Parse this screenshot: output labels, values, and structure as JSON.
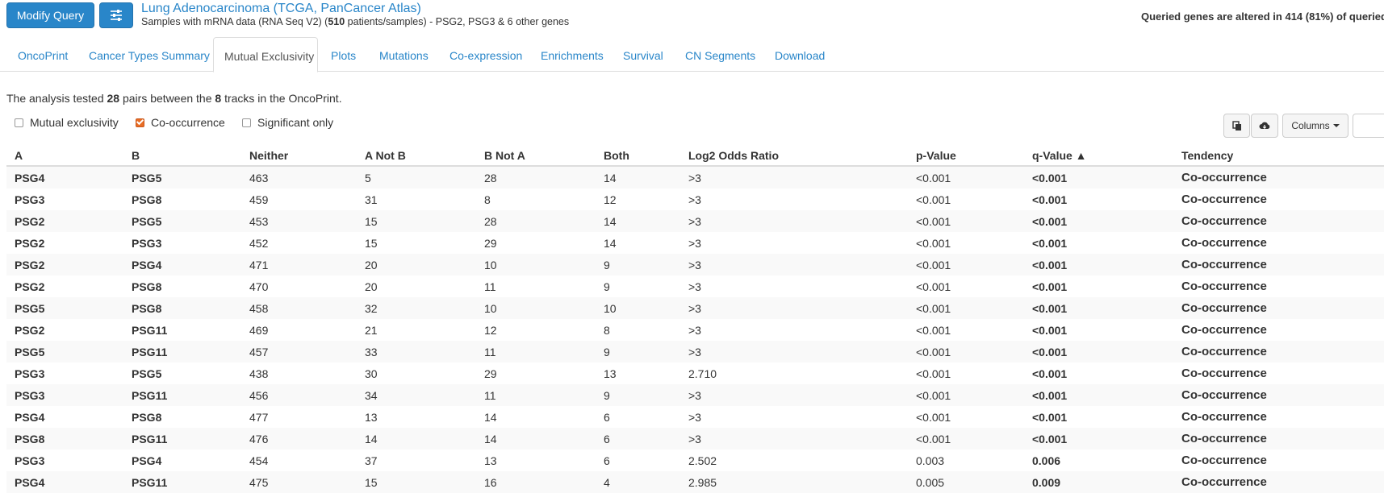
{
  "header": {
    "modify_label": "Modify Query",
    "study_title": "Lung Adenocarcinoma (TCGA, PanCancer Atlas)",
    "study_sub_prefix": "Samples with mRNA data (RNA Seq V2) (",
    "study_sub_count": "510",
    "study_sub_suffix": " patients/samples)  - PSG2, PSG3 & 6 other genes",
    "altered_text": "Queried genes are altered in 414 (81%) of queried"
  },
  "tabs": [
    "OncoPrint",
    "Cancer Types Summary",
    "Mutual Exclusivity",
    "Plots",
    "Mutations",
    "Co-expression",
    "Enrichments",
    "Survival",
    "CN Segments",
    "Download"
  ],
  "summary": {
    "p1": "The analysis tested ",
    "pairs": "28",
    "p2": " pairs between the ",
    "tracks": "8",
    "p3": " tracks in the OncoPrint."
  },
  "filters": {
    "mutual_exclusivity": "Mutual exclusivity",
    "co_occurrence": "Co-occurrence",
    "significant_only": "Significant only"
  },
  "toolbar": {
    "columns_label": "Columns"
  },
  "table": {
    "headers": [
      "A",
      "B",
      "Neither",
      "A Not B",
      "B Not A",
      "Both",
      "Log2 Odds Ratio",
      "p-Value",
      "q-Value ▲",
      "Tendency"
    ],
    "rows": [
      [
        "PSG4",
        "PSG5",
        "463",
        "5",
        "28",
        "14",
        ">3",
        "<0.001",
        "<0.001",
        "Co-occurrence"
      ],
      [
        "PSG3",
        "PSG8",
        "459",
        "31",
        "8",
        "12",
        ">3",
        "<0.001",
        "<0.001",
        "Co-occurrence"
      ],
      [
        "PSG2",
        "PSG5",
        "453",
        "15",
        "28",
        "14",
        ">3",
        "<0.001",
        "<0.001",
        "Co-occurrence"
      ],
      [
        "PSG2",
        "PSG3",
        "452",
        "15",
        "29",
        "14",
        ">3",
        "<0.001",
        "<0.001",
        "Co-occurrence"
      ],
      [
        "PSG2",
        "PSG4",
        "471",
        "20",
        "10",
        "9",
        ">3",
        "<0.001",
        "<0.001",
        "Co-occurrence"
      ],
      [
        "PSG2",
        "PSG8",
        "470",
        "20",
        "11",
        "9",
        ">3",
        "<0.001",
        "<0.001",
        "Co-occurrence"
      ],
      [
        "PSG5",
        "PSG8",
        "458",
        "32",
        "10",
        "10",
        ">3",
        "<0.001",
        "<0.001",
        "Co-occurrence"
      ],
      [
        "PSG2",
        "PSG11",
        "469",
        "21",
        "12",
        "8",
        ">3",
        "<0.001",
        "<0.001",
        "Co-occurrence"
      ],
      [
        "PSG5",
        "PSG11",
        "457",
        "33",
        "11",
        "9",
        ">3",
        "<0.001",
        "<0.001",
        "Co-occurrence"
      ],
      [
        "PSG3",
        "PSG5",
        "438",
        "30",
        "29",
        "13",
        "2.710",
        "<0.001",
        "<0.001",
        "Co-occurrence"
      ],
      [
        "PSG3",
        "PSG11",
        "456",
        "34",
        "11",
        "9",
        ">3",
        "<0.001",
        "<0.001",
        "Co-occurrence"
      ],
      [
        "PSG4",
        "PSG8",
        "477",
        "13",
        "14",
        "6",
        ">3",
        "<0.001",
        "<0.001",
        "Co-occurrence"
      ],
      [
        "PSG8",
        "PSG11",
        "476",
        "14",
        "14",
        "6",
        ">3",
        "<0.001",
        "<0.001",
        "Co-occurrence"
      ],
      [
        "PSG3",
        "PSG4",
        "454",
        "37",
        "13",
        "6",
        "2.502",
        "0.003",
        "0.006",
        "Co-occurrence"
      ],
      [
        "PSG4",
        "PSG11",
        "475",
        "15",
        "16",
        "4",
        "2.985",
        "0.005",
        "0.009",
        "Co-occurrence"
      ]
    ]
  },
  "colors": {
    "accent": "#2986c9",
    "checkbox": "#e86d25"
  }
}
